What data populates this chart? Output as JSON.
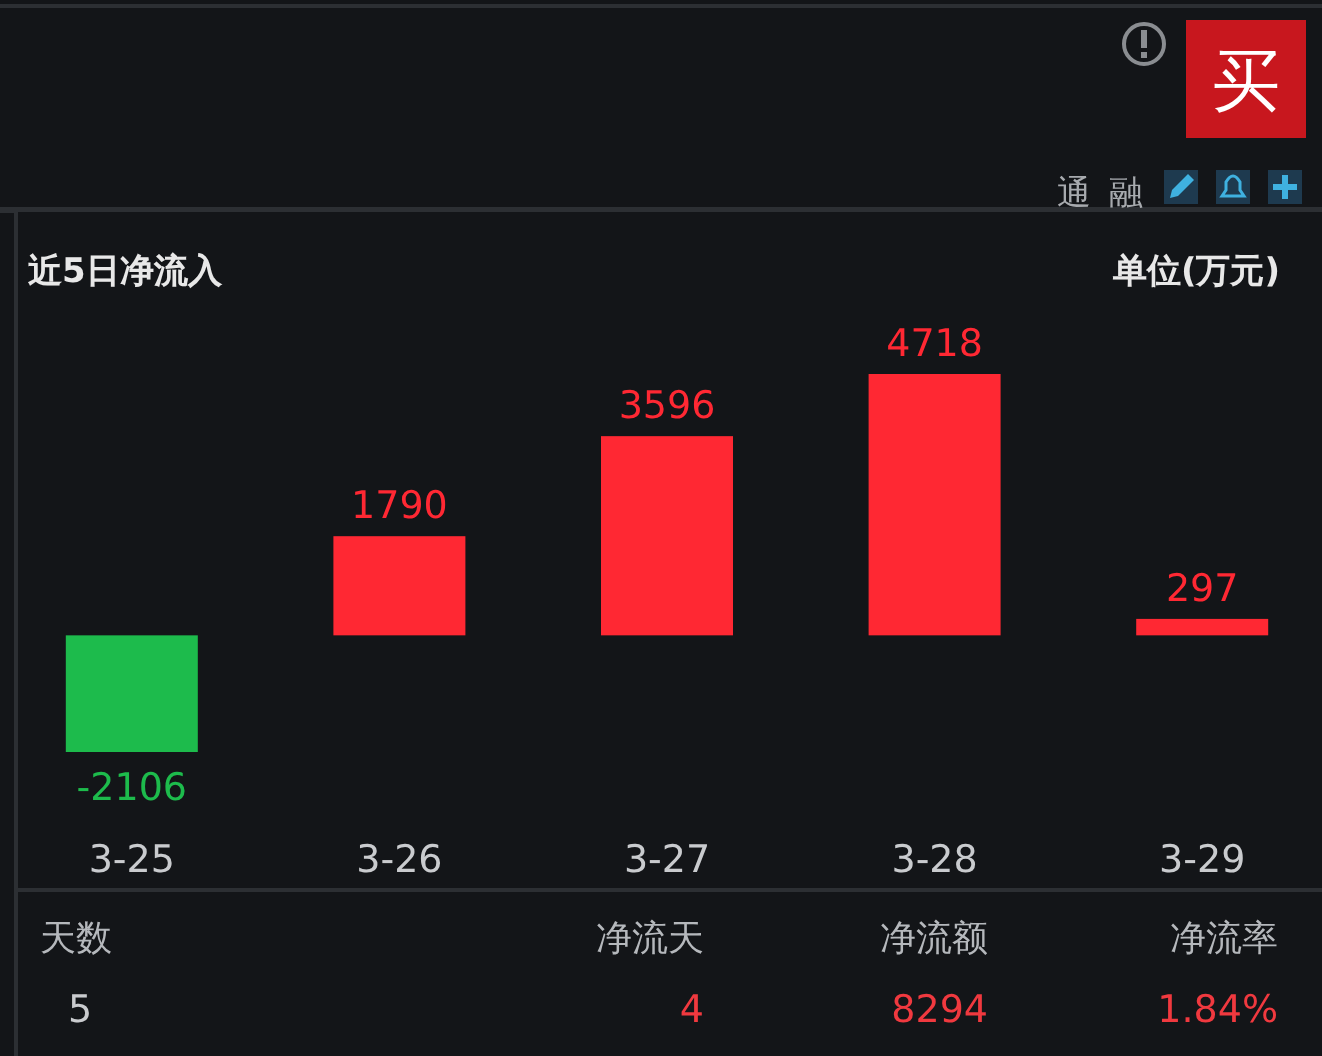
{
  "chart_data": {
    "type": "bar",
    "title": "近5日净流入",
    "ylabel": "单位(万元)",
    "categories": [
      "3-25",
      "3-26",
      "3-27",
      "3-28",
      "3-29"
    ],
    "values": [
      -2106,
      1790,
      3596,
      4718,
      297
    ],
    "colors": [
      "#1dbb4c",
      "#ff2833",
      "#ff2833",
      "#ff2833",
      "#ff2833"
    ],
    "data_labels": true,
    "annotations": [
      "买",
      "通",
      "融",
      "天数",
      "净流天",
      "净流额",
      "净流率",
      "5",
      "4",
      "8294",
      "1.84%"
    ]
  }
}
